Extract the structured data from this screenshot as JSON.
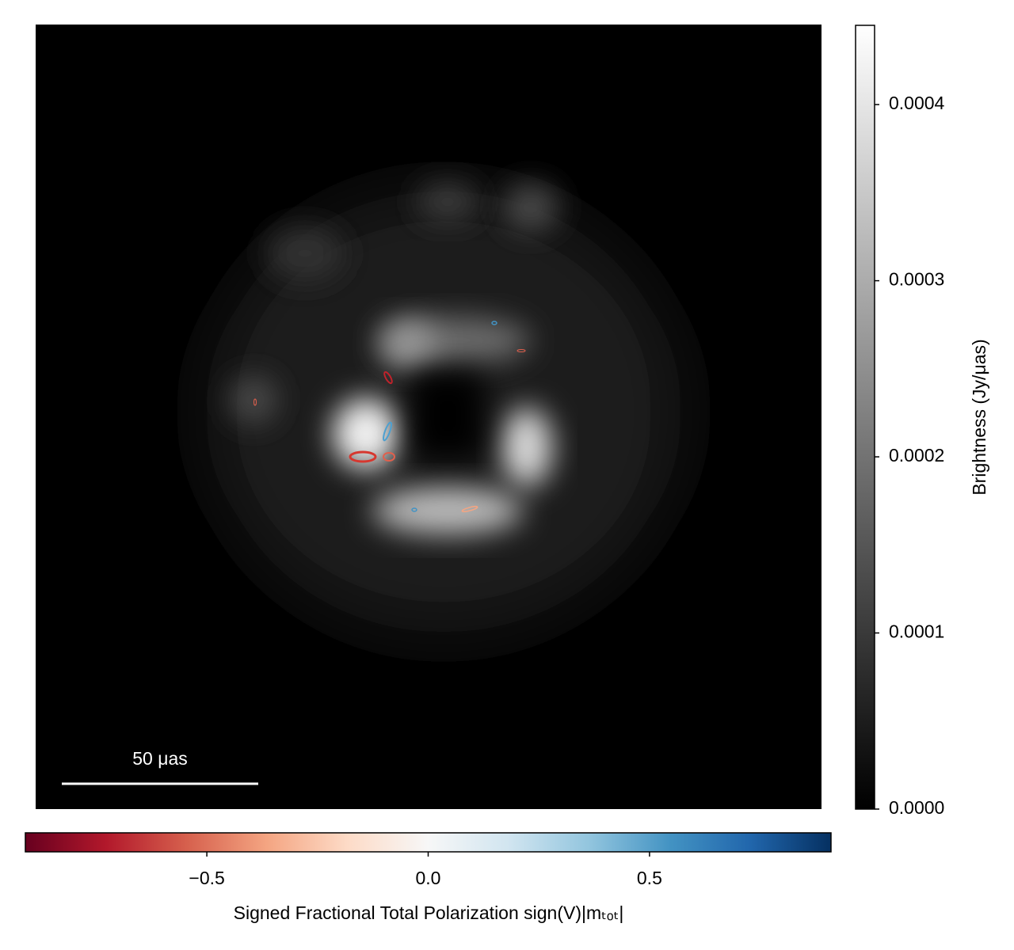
{
  "chart_data": {
    "type": "image",
    "colorbar": {
      "label": "Brightness (Jy/μas)",
      "lim": [
        0,
        0.000445
      ],
      "ticks": [
        {
          "value": 0,
          "label": "0.0000"
        },
        {
          "value": 0.0001,
          "label": "0.0001"
        },
        {
          "value": 0.0002,
          "label": "0.0002"
        },
        {
          "value": 0.0003,
          "label": "0.0003"
        },
        {
          "value": 0.0004,
          "label": "0.0004"
        }
      ]
    },
    "colorbar2": {
      "label": "Signed Fractional Total Polarization sign(V)|mₜₒₜ|",
      "lim": [
        -0.91,
        0.91
      ],
      "ticks": [
        {
          "value": -0.5,
          "label": "−0.5"
        },
        {
          "value": 0,
          "label": "0.0"
        },
        {
          "value": 0.5,
          "label": "0.5"
        }
      ]
    },
    "scale_bar": {
      "label": "50 μas"
    }
  }
}
